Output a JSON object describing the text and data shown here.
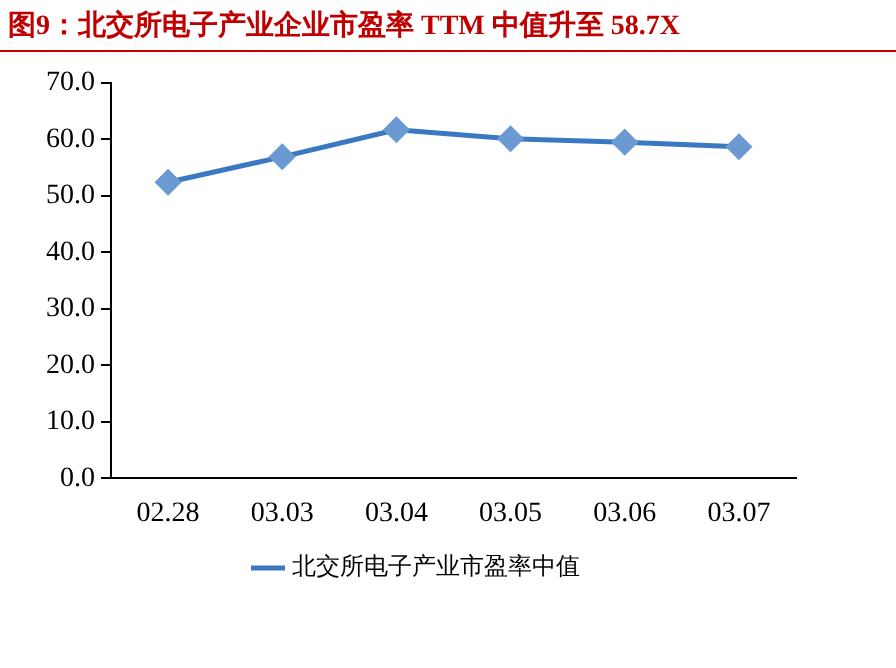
{
  "chart_data": {
    "type": "line",
    "title": "图9：北交所电子产业企业市盈率 TTM 中值升至 58.7X",
    "categories": [
      "02.28",
      "03.03",
      "03.04",
      "03.05",
      "03.06",
      "03.07"
    ],
    "series": [
      {
        "name": "北交所电子产业市盈率中值",
        "color": "#3a78c3",
        "values": [
          52.4,
          56.9,
          61.7,
          60.1,
          59.5,
          58.7
        ]
      }
    ],
    "ylim": [
      0,
      70
    ],
    "yticks": [
      {
        "value": 0,
        "label": "0.0"
      },
      {
        "value": 10,
        "label": "10.0"
      },
      {
        "value": 20,
        "label": "20.0"
      },
      {
        "value": 30,
        "label": "30.0"
      },
      {
        "value": 40,
        "label": "40.0"
      },
      {
        "value": 50,
        "label": "50.0"
      },
      {
        "value": 60,
        "label": "60.0"
      },
      {
        "value": 70,
        "label": "70.0"
      }
    ],
    "grid": false,
    "legend": "bottom",
    "marker": "diamond",
    "line_style": "solid"
  }
}
